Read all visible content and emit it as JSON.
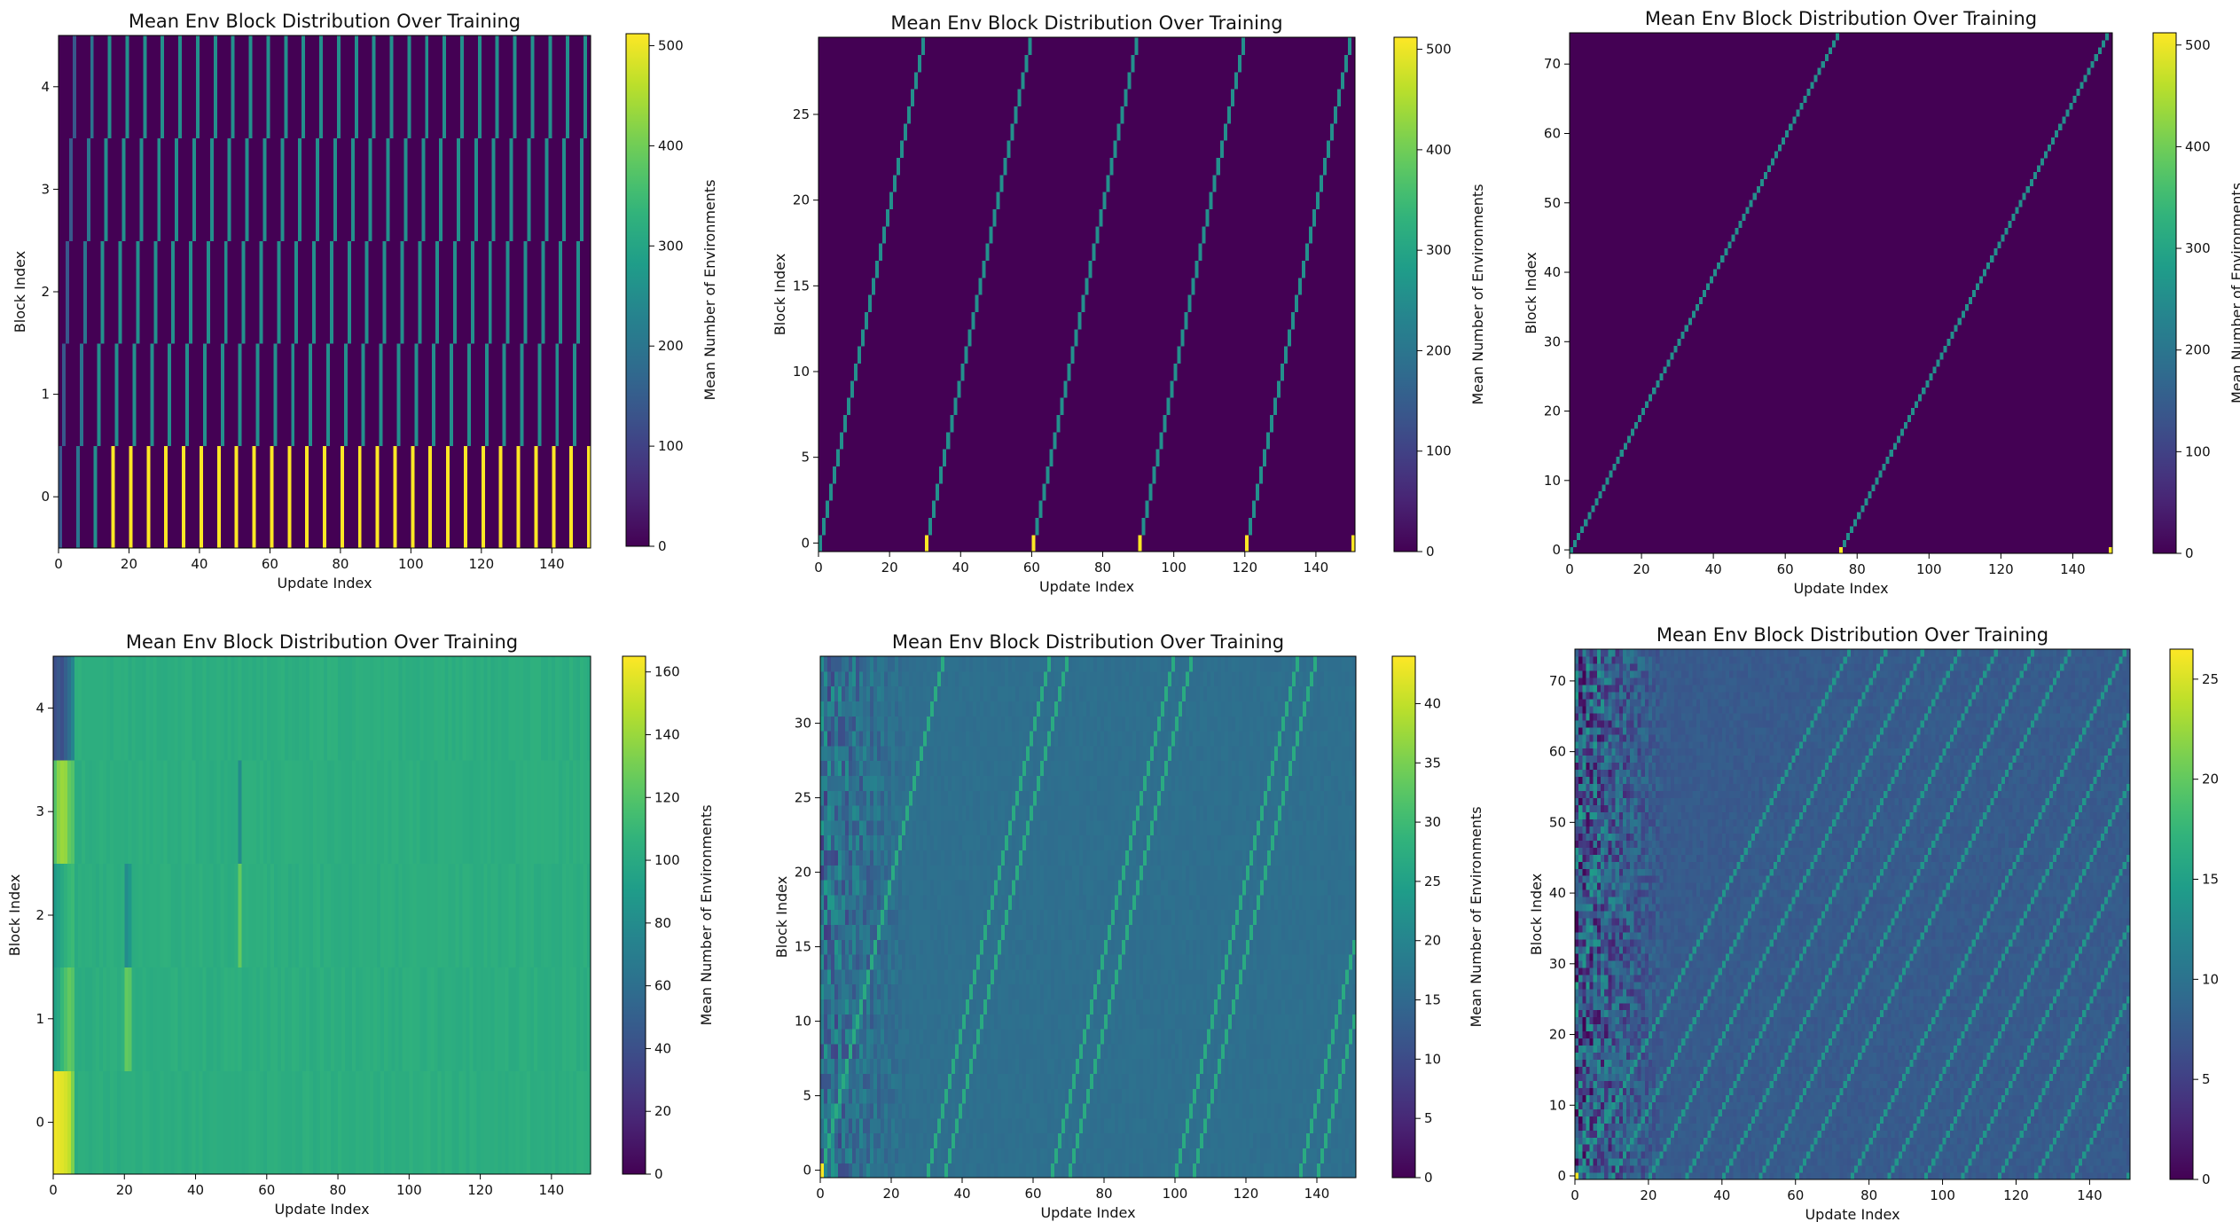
{
  "figure": {
    "layout": "2 rows x 3 columns of heatmaps"
  },
  "chart_data": [
    {
      "type": "heatmap",
      "pattern": "sweep",
      "title": "Mean Env Block Distribution Over Training",
      "xlabel": "Update Index",
      "ylabel": "Block Index",
      "colorbar_label": "Mean Number of Environments",
      "colormap": "viridis",
      "n_updates": 151,
      "n_blocks": 5,
      "xlim": [
        0,
        151
      ],
      "xticks": [
        0,
        20,
        40,
        60,
        80,
        100,
        120,
        140
      ],
      "yticks": [
        0,
        1,
        2,
        3,
        4
      ],
      "vmin": 0,
      "vmax": 512,
      "cbar_ticks": [
        0,
        100,
        200,
        300,
        400,
        500
      ],
      "sweep_period": 5,
      "active_value": 256,
      "reset_value": 512,
      "ramp_values": [
        140,
        200,
        256
      ]
    },
    {
      "type": "heatmap",
      "pattern": "sweep",
      "title": "Mean Env Block Distribution Over Training",
      "xlabel": "Update Index",
      "ylabel": "Block Index",
      "colorbar_label": "Mean Number of Environments",
      "colormap": "viridis",
      "n_updates": 151,
      "n_blocks": 30,
      "xlim": [
        0,
        151
      ],
      "xticks": [
        0,
        20,
        40,
        60,
        80,
        100,
        120,
        140
      ],
      "yticks": [
        0,
        5,
        10,
        15,
        20,
        25
      ],
      "vmin": 0,
      "vmax": 512,
      "cbar_ticks": [
        0,
        100,
        200,
        300,
        400,
        500
      ],
      "sweep_period": 30,
      "active_value": 256,
      "reset_value": 512,
      "ramp_values": [
        256
      ]
    },
    {
      "type": "heatmap",
      "pattern": "sweep",
      "title": "Mean Env Block Distribution Over Training",
      "xlabel": "Update Index",
      "ylabel": "Block Index",
      "colorbar_label": "Mean Number of Environments",
      "colormap": "viridis",
      "n_updates": 151,
      "n_blocks": 75,
      "xlim": [
        0,
        151
      ],
      "xticks": [
        0,
        20,
        40,
        60,
        80,
        100,
        120,
        140
      ],
      "yticks": [
        0,
        10,
        20,
        30,
        40,
        50,
        60,
        70
      ],
      "vmin": 0,
      "vmax": 512,
      "cbar_ticks": [
        0,
        100,
        200,
        300,
        400,
        500
      ],
      "sweep_period": 75,
      "active_value": 256,
      "reset_value": 512,
      "ramp_values": [
        256
      ]
    },
    {
      "type": "heatmap",
      "pattern": "cumulative5",
      "title": "Mean Env Block Distribution Over Training",
      "xlabel": "Update Index",
      "ylabel": "Block Index",
      "colorbar_label": "Mean Number of Environments",
      "colormap": "viridis",
      "n_updates": 151,
      "n_blocks": 5,
      "xlim": [
        0,
        151
      ],
      "xticks": [
        0,
        20,
        40,
        60,
        80,
        100,
        120,
        140
      ],
      "yticks": [
        0,
        1,
        2,
        3,
        4
      ],
      "vmin": 0,
      "vmax": 165,
      "cbar_ticks": [
        0,
        20,
        40,
        60,
        80,
        100,
        120,
        140,
        160
      ],
      "early_rows": [
        [
          162,
          160,
          158,
          155,
          150,
          132
        ],
        [
          95,
          100,
          110,
          118,
          125,
          120
        ],
        [
          90,
          95,
          100,
          105,
          110,
          112
        ],
        [
          120,
          135,
          140,
          138,
          125,
          120
        ],
        [
          40,
          45,
          40,
          50,
          60,
          75
        ]
      ],
      "steady_value": 103,
      "highlights": [
        {
          "block": 1,
          "update": 20,
          "value": 125
        },
        {
          "block": 1,
          "update": 21,
          "value": 122
        },
        {
          "block": 2,
          "update": 20,
          "value": 80
        },
        {
          "block": 2,
          "update": 21,
          "value": 88
        },
        {
          "block": 2,
          "update": 52,
          "value": 125
        },
        {
          "block": 3,
          "update": 52,
          "value": 80
        }
      ]
    },
    {
      "type": "heatmap",
      "pattern": "cumulative-sweep",
      "title": "Mean Env Block Distribution Over Training",
      "xlabel": "Update Index",
      "ylabel": "Block Index",
      "colorbar_label": "Mean Number of Environments",
      "colormap": "viridis",
      "n_updates": 151,
      "n_blocks": 35,
      "xlim": [
        0,
        151
      ],
      "xticks": [
        0,
        20,
        40,
        60,
        80,
        100,
        120,
        140
      ],
      "yticks": [
        0,
        5,
        10,
        15,
        20,
        25,
        30
      ],
      "vmin": 0,
      "vmax": 44,
      "cbar_ticks": [
        0,
        5,
        10,
        15,
        20,
        25,
        30,
        35,
        40
      ],
      "base_value": 16,
      "line_value": 27,
      "line_period": 35,
      "line_offsets": [
        0,
        30
      ],
      "reset_value": 44
    },
    {
      "type": "heatmap",
      "pattern": "cumulative-sweep",
      "title": "Mean Env Block Distribution Over Training",
      "xlabel": "Update Index",
      "ylabel": "Block Index",
      "colorbar_label": "Mean Number of Environments",
      "colormap": "viridis",
      "n_updates": 151,
      "n_blocks": 75,
      "xlim": [
        0,
        151
      ],
      "xticks": [
        0,
        20,
        40,
        60,
        80,
        100,
        120,
        140
      ],
      "yticks": [
        0,
        10,
        20,
        30,
        40,
        50,
        60,
        70
      ],
      "vmin": 0,
      "vmax": 26.5,
      "cbar_ticks": [
        0,
        5,
        10,
        15,
        20,
        25
      ],
      "base_value": 7.5,
      "line_value": 14,
      "line_period": 75,
      "line_offsets": [
        0,
        10,
        20,
        30,
        40,
        50,
        60
      ],
      "reset_value": 26
    }
  ]
}
